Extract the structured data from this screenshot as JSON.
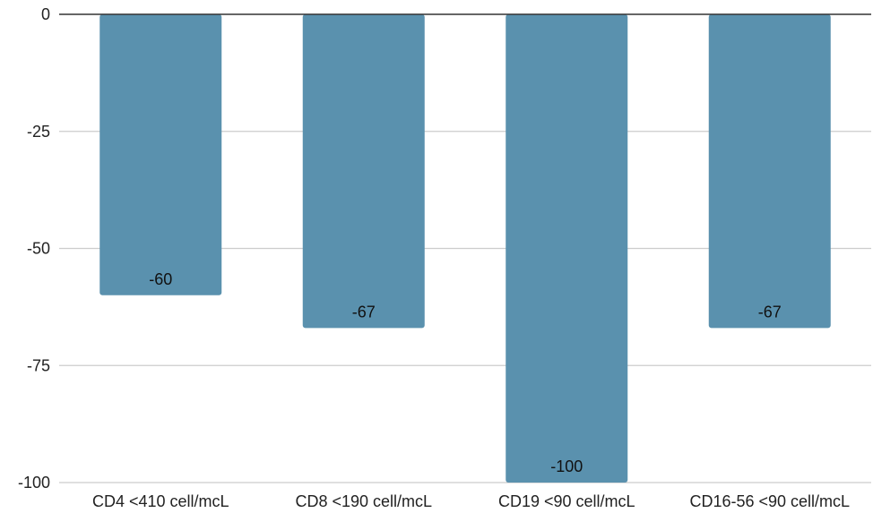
{
  "chart_data": {
    "type": "bar",
    "title": "",
    "xlabel": "",
    "ylabel": "",
    "categories": [
      "CD4 <410 cell/mcL",
      "CD8 <190 cell/mcL",
      "CD19 <90 cell/mcL",
      "CD16-56 <90  cell/mcL"
    ],
    "values": [
      -60,
      -67,
      -100,
      -67
    ],
    "data_labels": [
      "-60",
      "-67",
      "-100",
      "-67"
    ],
    "ylim": [
      -100,
      0
    ],
    "yticks": [
      0,
      -25,
      -50,
      -75,
      -100
    ],
    "ytick_labels": [
      "0",
      "-25",
      "-50",
      "-75",
      "-100"
    ],
    "grid": true,
    "legend": "none",
    "colors": {
      "bar": "#5a91ae",
      "grid": "#cccccc",
      "zero_line": "#333333"
    }
  }
}
